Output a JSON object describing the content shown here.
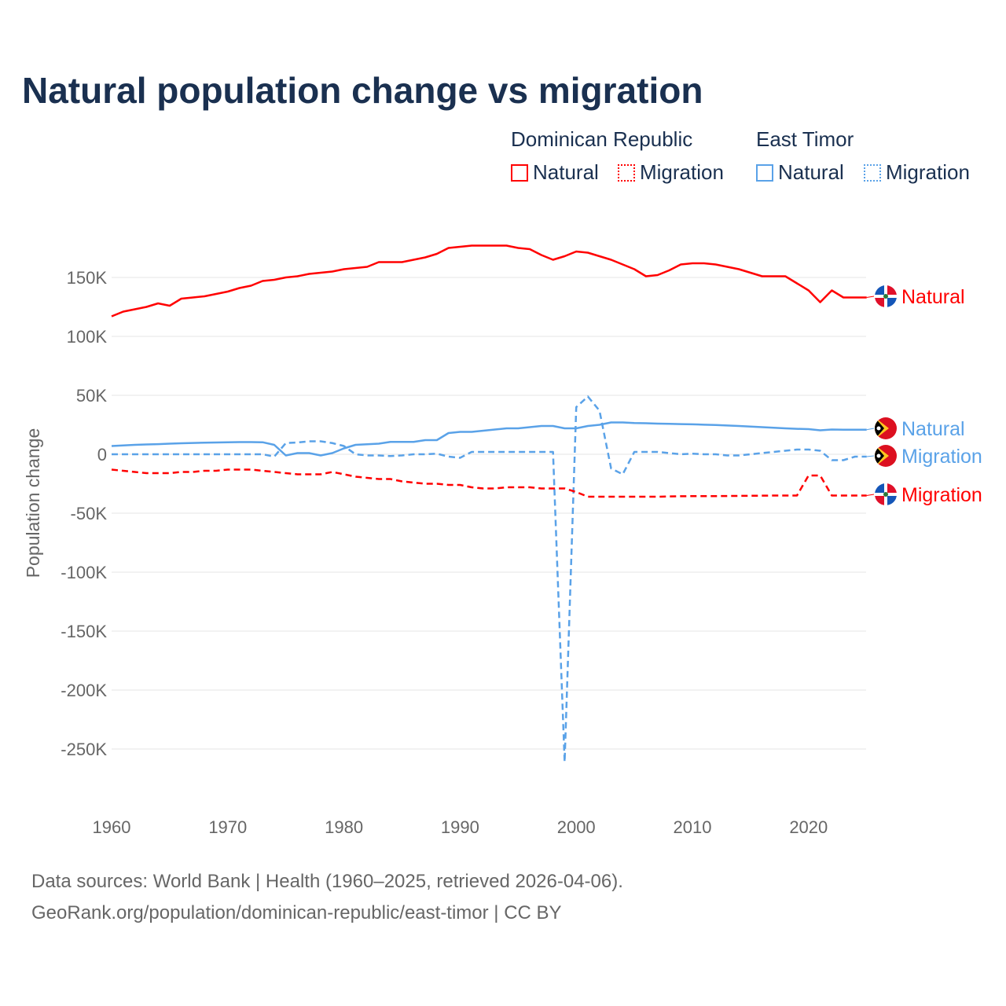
{
  "title": "Natural population change vs migration",
  "legend": {
    "groups": [
      {
        "name": "Dominican Republic",
        "color": "#ff0000",
        "items": [
          "Natural",
          "Migration"
        ]
      },
      {
        "name": "East Timor",
        "color": "#5aa2e8",
        "items": [
          "Natural",
          "Migration"
        ]
      }
    ]
  },
  "footer": {
    "line1": "Data sources: World Bank | Health (1960–2025, retrieved 2026-04-06).",
    "line2": "GeoRank.org/population/dominican-republic/east-timor | CC BY"
  },
  "chart_data": {
    "type": "line",
    "title": "Natural population change vs migration",
    "xlabel": "",
    "ylabel": "Population change",
    "xlim": [
      1960,
      2025
    ],
    "ylim": [
      -270000,
      185000
    ],
    "xticks": [
      1960,
      1970,
      1980,
      1990,
      2000,
      2010,
      2020
    ],
    "xtick_labels": [
      "1960",
      "1970",
      "1980",
      "1990",
      "2000",
      "2010",
      "2020"
    ],
    "yticks": [
      150,
      100,
      50,
      0,
      -50,
      -100,
      -150,
      -200,
      -250
    ],
    "ytick_labels": [
      "150K",
      "100K",
      "50K",
      "0",
      "-50K",
      "-100K",
      "-150K",
      "-200K",
      "-250K"
    ],
    "units": "thousands",
    "series": [
      {
        "name": "Dominican Republic Natural",
        "label": "Natural",
        "color": "#ff0000",
        "dash": false,
        "start": 1960,
        "values": [
          117,
          121,
          123,
          125,
          128,
          126,
          132,
          133,
          134,
          136,
          138,
          141,
          143,
          147,
          148,
          150,
          151,
          153,
          154,
          155,
          157,
          158,
          159,
          163,
          163,
          163,
          165,
          167,
          170,
          175,
          176,
          177,
          177,
          177,
          177,
          175,
          174,
          169,
          165,
          168,
          172,
          171,
          168,
          165,
          161,
          157,
          151,
          152,
          156,
          161,
          162,
          162,
          161,
          159,
          157,
          154,
          151,
          151,
          151,
          145,
          139,
          129,
          139,
          133,
          133,
          133
        ]
      },
      {
        "name": "East Timor Natural",
        "label": "Natural",
        "color": "#5aa2e8",
        "dash": false,
        "start": 1960,
        "values": [
          7,
          7.5,
          8,
          8.3,
          8.6,
          9,
          9.3,
          9.6,
          9.8,
          10,
          10.2,
          10.3,
          10.3,
          10.2,
          8,
          -1,
          1,
          1,
          -1,
          1,
          5,
          8,
          8.5,
          9,
          10.5,
          10.5,
          10.5,
          12,
          12,
          18,
          19,
          19,
          20,
          21,
          22,
          22,
          23,
          24,
          24,
          22,
          22,
          24,
          25,
          27,
          27,
          26.5,
          26.3,
          26,
          25.8,
          25.6,
          25.4,
          25.1,
          24.8,
          24.4,
          24,
          23.5,
          23,
          22.5,
          22,
          21.6,
          21.3,
          20.3,
          21,
          20.8,
          20.8,
          20.8
        ]
      },
      {
        "name": "East Timor Migration",
        "label": "Migration",
        "color": "#5aa2e8",
        "dash": true,
        "start": 1960,
        "values": [
          0,
          0,
          0,
          0,
          0,
          0,
          0,
          0,
          0,
          0,
          0,
          0,
          0,
          0,
          -2,
          9.5,
          10,
          11,
          11,
          9.5,
          7,
          0,
          -1,
          -1,
          -1.5,
          -1,
          0,
          0,
          0.5,
          -2,
          -3,
          2,
          2,
          2,
          2,
          2,
          2,
          2,
          2,
          -261,
          40,
          49,
          37,
          -12,
          -17,
          2,
          2,
          2,
          1,
          0,
          0.5,
          0,
          0,
          -1,
          -1,
          0,
          1,
          2,
          3,
          4,
          4,
          3,
          -5,
          -5,
          -2,
          -2
        ]
      },
      {
        "name": "Dominican Republic Migration",
        "label": "Migration",
        "color": "#ff0000",
        "dash": true,
        "start": 1960,
        "values": [
          -13,
          -14,
          -15,
          -16,
          -16,
          -16,
          -15,
          -15,
          -14,
          -14,
          -13,
          -13,
          -13,
          -14,
          -15,
          -16,
          -17,
          -17,
          -17,
          -15,
          -17,
          -19,
          -20,
          -21,
          -21,
          -23,
          -24,
          -25,
          -25,
          -26,
          -26,
          -28,
          -29,
          -29,
          -28,
          -28,
          -28,
          -29,
          -29,
          -29,
          -32,
          -36,
          -36,
          -36,
          -36,
          -36,
          -36,
          -36,
          -35.8,
          -35.6,
          -35.5,
          -35.5,
          -35.5,
          -35.4,
          -35.3,
          -35.2,
          -35.1,
          -35,
          -35,
          -35,
          -18,
          -18,
          -35,
          -35,
          -35,
          -35
        ]
      }
    ]
  }
}
